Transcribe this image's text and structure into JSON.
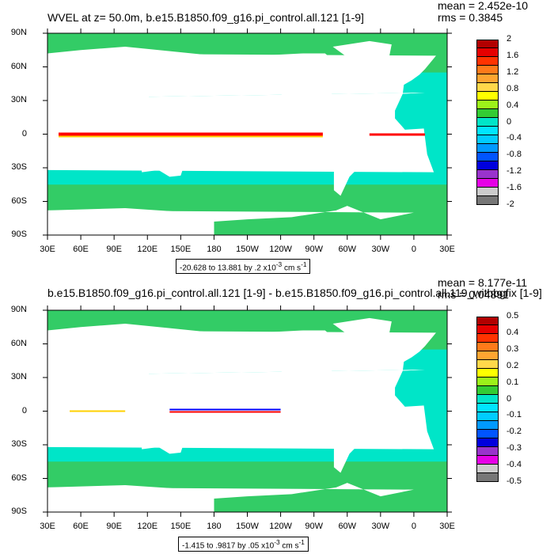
{
  "colors": {
    "ocean": "#00e5c8",
    "land": "#ffffff",
    "pos_band": [
      "#ff0000",
      "#ffd000"
    ],
    "neg_band": [
      "#0000ff",
      "#00a0ff"
    ],
    "green": "#33cc66"
  },
  "panels": [
    {
      "id": "top",
      "title": "WVEL at z=  50.0m, b.e15.B1850.f09_g16.pi_control.all.121 [1-9]",
      "mean": "mean = 2.452e-10",
      "rms": "rms = 0.3845",
      "range_text": "-20.628 to 13.881 by .2 x10",
      "range_exp": "-3",
      "range_units": " cm s",
      "range_units_exp": "-1",
      "colorbar": {
        "labels": [
          "2",
          "1.6",
          "1.2",
          "0.8",
          "0.4",
          "0",
          "-0.4",
          "-0.8",
          "-1.2",
          "-1.6",
          "-2"
        ],
        "colors": [
          "#b20000",
          "#e60000",
          "#ff3300",
          "#ff7a1a",
          "#ffa531",
          "#ffd84a",
          "#ffff00",
          "#9cf21a",
          "#33cc33",
          "#00e5c8",
          "#00e5ff",
          "#00ccff",
          "#0099ff",
          "#0055ff",
          "#0000dd",
          "#9933cc",
          "#e600e6",
          "#cccccc",
          "#777777"
        ]
      },
      "lat_labels": [
        "90N",
        "60N",
        "30N",
        "0",
        "30S",
        "60S",
        "90S"
      ],
      "lon_labels": [
        "30E",
        "60E",
        "90E",
        "120E",
        "150E",
        "180",
        "150W",
        "120W",
        "90W",
        "60W",
        "30W",
        "0",
        "30E"
      ]
    },
    {
      "id": "bottom",
      "title": "b.e15.B1850.f09_g16.pi_control.all.121 [1-9] - b.e15.B1850.f09_g16.pi_control.all.119_withbgfix [1-9]",
      "mean": "mean = 8.177e-11",
      "rms": "rms = 0.04891",
      "range_text": "-1.415 to .9817 by .05 x10",
      "range_exp": "-3",
      "range_units": " cm s",
      "range_units_exp": "-1",
      "colorbar": {
        "labels": [
          "0.5",
          "0.4",
          "0.3",
          "0.2",
          "0.1",
          "0",
          "-0.1",
          "-0.2",
          "-0.3",
          "-0.4",
          "-0.5"
        ],
        "colors": [
          "#b20000",
          "#e60000",
          "#ff3300",
          "#ff7a1a",
          "#ffa531",
          "#ffd84a",
          "#ffff00",
          "#9cf21a",
          "#33cc33",
          "#00e5c8",
          "#00e5ff",
          "#00ccff",
          "#0099ff",
          "#0055ff",
          "#0000dd",
          "#9933cc",
          "#e600e6",
          "#cccccc",
          "#777777"
        ]
      },
      "lat_labels": [
        "90N",
        "60N",
        "30N",
        "0",
        "30S",
        "60S",
        "90S"
      ],
      "lon_labels": [
        "30E",
        "60E",
        "90E",
        "120E",
        "150E",
        "180",
        "150W",
        "120W",
        "90W",
        "60W",
        "30W",
        "0",
        "30E"
      ]
    }
  ]
}
